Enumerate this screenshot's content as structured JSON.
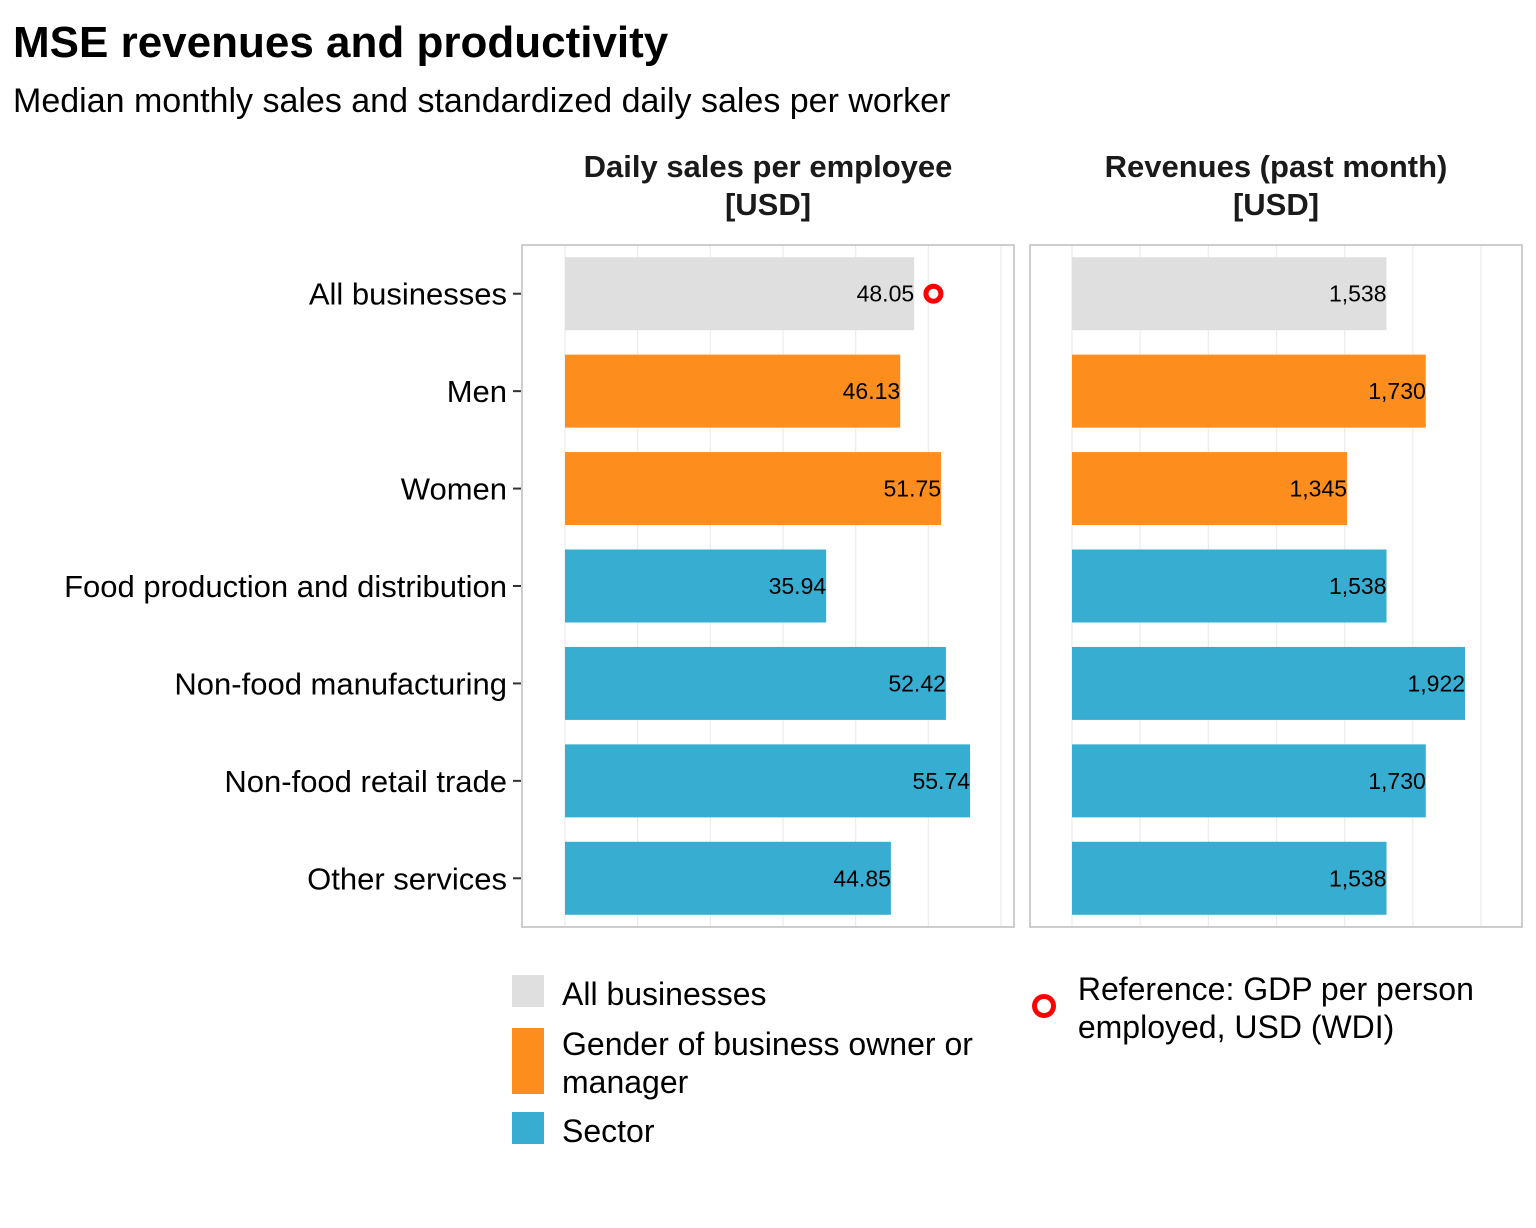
{
  "title": "MSE revenues and productivity",
  "subtitle": "Median monthly sales and standardized daily sales per worker",
  "colors": {
    "all": "#dfdfdf",
    "gender": "#fd8e1e",
    "sector": "#37aed1",
    "reference": "#ff0000",
    "panel_border": "#bdbdbd",
    "grid": "#ebebeb"
  },
  "chart_data": {
    "type": "bar",
    "orientation": "horizontal",
    "categories": [
      "All businesses",
      "Men",
      "Women",
      "Food production and distribution",
      "Non-food manufacturing",
      "Non-food retail trade",
      "Other services"
    ],
    "groups": [
      "all",
      "gender",
      "gender",
      "sector",
      "sector",
      "sector",
      "sector"
    ],
    "panels": [
      {
        "title_line1": "Daily sales per employee",
        "title_line2": "[USD]",
        "values": [
          48.05,
          46.13,
          51.75,
          35.94,
          52.42,
          55.74,
          44.85
        ],
        "value_labels": [
          "48.05",
          "46.13",
          "51.75",
          "35.94",
          "52.42",
          "55.74",
          "44.85"
        ],
        "xlim": [
          0,
          60
        ],
        "reference": {
          "category": "All businesses",
          "value": 50.7
        }
      },
      {
        "title_line1": "Revenues (past month)",
        "title_line2": "[USD]",
        "values": [
          1538,
          1730,
          1345,
          1538,
          1922,
          1730,
          1538
        ],
        "value_labels": [
          "1,538",
          "1,730",
          "1,345",
          "1,538",
          "1,922",
          "1,730",
          "1,538"
        ],
        "xlim": [
          0,
          2000
        ]
      }
    ],
    "grid": true,
    "legend_position": "bottom"
  },
  "legend": {
    "items": [
      {
        "label": "All businesses",
        "color": "#dfdfdf"
      },
      {
        "label": "Gender of business owner or manager",
        "color": "#fd8e1e"
      },
      {
        "label": "Sector",
        "color": "#37aed1"
      }
    ],
    "reference_label": "Reference: GDP per person employed, USD (WDI)"
  }
}
